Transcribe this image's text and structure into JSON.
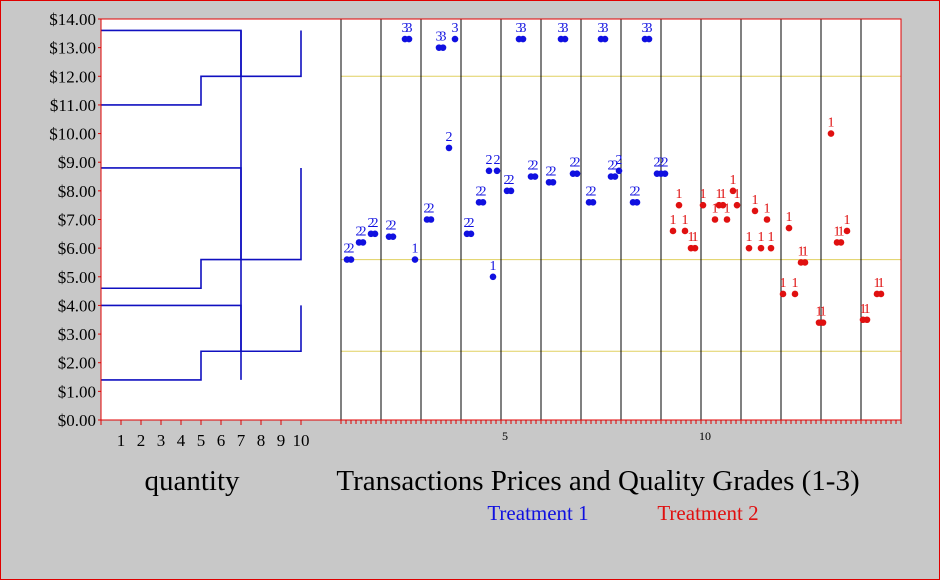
{
  "chart_data": {
    "type": "scatter",
    "title": "Transactions Prices and Quality Grades (1-3)",
    "yaxis": {
      "range": [
        0,
        14
      ],
      "ticks": [
        "$0.00",
        "$1.00",
        "$2.00",
        "$3.00",
        "$4.00",
        "$5.00",
        "$6.00",
        "$7.00",
        "$8.00",
        "$9.00",
        "$10.00",
        "$11.00",
        "$12.00",
        "$13.00",
        "$14.00"
      ]
    },
    "reference_prices": [
      12.0,
      5.6,
      2.4
    ],
    "supply_demand_panel": {
      "xlabel": "quantity",
      "x_range": [
        0,
        10
      ],
      "x_ticks": [
        "1",
        "2",
        "3",
        "4",
        "5",
        "6",
        "7",
        "8",
        "9",
        "10"
      ],
      "demand_steps": [
        {
          "grade": 3,
          "points": [
            [
              0,
              13.6
            ],
            [
              7,
              13.6
            ],
            [
              7,
              12.0
            ],
            [
              10,
              12.0
            ],
            [
              10,
              13.6
            ]
          ]
        },
        {
          "grade": 2,
          "points": [
            [
              0,
              8.8
            ],
            [
              7,
              8.8
            ],
            [
              7,
              5.6
            ],
            [
              10,
              5.6
            ],
            [
              10,
              8.8
            ]
          ]
        },
        {
          "grade": 1,
          "points": [
            [
              0,
              4.0
            ],
            [
              7,
              4.0
            ],
            [
              7,
              2.4
            ],
            [
              10,
              2.4
            ],
            [
              10,
              4.0
            ]
          ]
        }
      ],
      "supply_steps": [
        {
          "grade": 3,
          "points": [
            [
              0,
              11.0
            ],
            [
              5,
              11.0
            ],
            [
              5,
              12.0
            ],
            [
              7,
              12.0
            ]
          ]
        },
        {
          "grade": 2,
          "points": [
            [
              0,
              4.6
            ],
            [
              5,
              4.6
            ],
            [
              5,
              5.6
            ],
            [
              7,
              5.6
            ]
          ]
        },
        {
          "grade": 1,
          "points": [
            [
              0,
              1.4
            ],
            [
              5,
              1.4
            ],
            [
              5,
              2.4
            ],
            [
              7,
              2.4
            ]
          ]
        }
      ],
      "vertical_line_x": 7,
      "vertical_line_range": [
        1.4,
        13.6
      ]
    },
    "transactions_panel": {
      "periods": 14,
      "period_tick_labels": [
        {
          "period": 5,
          "label": "5"
        },
        {
          "period": 10,
          "label": "10"
        }
      ],
      "series": [
        {
          "name": "Treatment 1",
          "color": "#1010e0",
          "periods": [
            1,
            2,
            3,
            4,
            5,
            6,
            7,
            8,
            9
          ],
          "points": [
            {
              "x": 0.15,
              "y": 5.6,
              "label": "2"
            },
            {
              "x": 0.25,
              "y": 5.6,
              "label": "2"
            },
            {
              "x": 0.45,
              "y": 6.2,
              "label": "2"
            },
            {
              "x": 0.55,
              "y": 6.2,
              "label": "2"
            },
            {
              "x": 0.75,
              "y": 6.5,
              "label": "2"
            },
            {
              "x": 0.85,
              "y": 6.5,
              "label": "2"
            },
            {
              "x": 1.2,
              "y": 6.4,
              "label": "2"
            },
            {
              "x": 1.3,
              "y": 6.4,
              "label": "2"
            },
            {
              "x": 1.6,
              "y": 13.3,
              "label": "3"
            },
            {
              "x": 1.7,
              "y": 13.3,
              "label": "3"
            },
            {
              "x": 1.85,
              "y": 5.6,
              "label": "1"
            },
            {
              "x": 2.15,
              "y": 7.0,
              "label": "2"
            },
            {
              "x": 2.25,
              "y": 7.0,
              "label": "2"
            },
            {
              "x": 2.45,
              "y": 13.0,
              "label": "3"
            },
            {
              "x": 2.55,
              "y": 13.0,
              "label": "3"
            },
            {
              "x": 2.7,
              "y": 9.5,
              "label": "2"
            },
            {
              "x": 2.85,
              "y": 13.3,
              "label": "3"
            },
            {
              "x": 3.15,
              "y": 6.5,
              "label": "2"
            },
            {
              "x": 3.25,
              "y": 6.5,
              "label": "2"
            },
            {
              "x": 3.45,
              "y": 7.6,
              "label": "2"
            },
            {
              "x": 3.55,
              "y": 7.6,
              "label": "2"
            },
            {
              "x": 3.7,
              "y": 8.7,
              "label": "2"
            },
            {
              "x": 3.8,
              "y": 5.0,
              "label": "1"
            },
            {
              "x": 3.9,
              "y": 8.7,
              "label": "2"
            },
            {
              "x": 4.15,
              "y": 8.0,
              "label": "2"
            },
            {
              "x": 4.25,
              "y": 8.0,
              "label": "2"
            },
            {
              "x": 4.45,
              "y": 13.3,
              "label": "3"
            },
            {
              "x": 4.55,
              "y": 13.3,
              "label": "3"
            },
            {
              "x": 4.75,
              "y": 8.5,
              "label": "2"
            },
            {
              "x": 4.85,
              "y": 8.5,
              "label": "2"
            },
            {
              "x": 5.2,
              "y": 8.3,
              "label": "2"
            },
            {
              "x": 5.3,
              "y": 8.3,
              "label": "2"
            },
            {
              "x": 5.5,
              "y": 13.3,
              "label": "3"
            },
            {
              "x": 5.6,
              "y": 13.3,
              "label": "3"
            },
            {
              "x": 5.8,
              "y": 8.6,
              "label": "2"
            },
            {
              "x": 5.9,
              "y": 8.6,
              "label": "2"
            },
            {
              "x": 6.2,
              "y": 7.6,
              "label": "2"
            },
            {
              "x": 6.3,
              "y": 7.6,
              "label": "2"
            },
            {
              "x": 6.5,
              "y": 13.3,
              "label": "3"
            },
            {
              "x": 6.6,
              "y": 13.3,
              "label": "3"
            },
            {
              "x": 6.75,
              "y": 8.5,
              "label": "2"
            },
            {
              "x": 6.85,
              "y": 8.5,
              "label": "2"
            },
            {
              "x": 6.95,
              "y": 8.7,
              "label": "2"
            },
            {
              "x": 7.3,
              "y": 7.6,
              "label": "2"
            },
            {
              "x": 7.4,
              "y": 7.6,
              "label": "2"
            },
            {
              "x": 7.6,
              "y": 13.3,
              "label": "3"
            },
            {
              "x": 7.7,
              "y": 13.3,
              "label": "3"
            },
            {
              "x": 7.9,
              "y": 8.6,
              "label": "2"
            },
            {
              "x": 8.0,
              "y": 8.6,
              "label": "2"
            },
            {
              "x": 8.1,
              "y": 8.6,
              "label": "2"
            }
          ]
        },
        {
          "name": "Treatment 2",
          "color": "#e01010",
          "periods": [
            10,
            11,
            12,
            13,
            14
          ],
          "points": [
            {
              "x": 8.3,
              "y": 6.6,
              "label": "1"
            },
            {
              "x": 8.45,
              "y": 7.5,
              "label": "1"
            },
            {
              "x": 8.6,
              "y": 6.6,
              "label": "1"
            },
            {
              "x": 8.75,
              "y": 6.0,
              "label": "1"
            },
            {
              "x": 8.85,
              "y": 6.0,
              "label": "1"
            },
            {
              "x": 9.05,
              "y": 7.5,
              "label": "1"
            },
            {
              "x": 9.35,
              "y": 7.0,
              "label": "1"
            },
            {
              "x": 9.45,
              "y": 7.5,
              "label": "1"
            },
            {
              "x": 9.55,
              "y": 7.5,
              "label": "1"
            },
            {
              "x": 9.65,
              "y": 7.0,
              "label": "1"
            },
            {
              "x": 9.8,
              "y": 8.0,
              "label": "1"
            },
            {
              "x": 9.9,
              "y": 7.5,
              "label": "1"
            },
            {
              "x": 10.2,
              "y": 6.0,
              "label": "1"
            },
            {
              "x": 10.35,
              "y": 7.3,
              "label": "1"
            },
            {
              "x": 10.5,
              "y": 6.0,
              "label": "1"
            },
            {
              "x": 10.65,
              "y": 7.0,
              "label": "1"
            },
            {
              "x": 10.75,
              "y": 6.0,
              "label": "1"
            },
            {
              "x": 11.05,
              "y": 4.4,
              "label": "1"
            },
            {
              "x": 11.2,
              "y": 6.7,
              "label": "1"
            },
            {
              "x": 11.35,
              "y": 4.4,
              "label": "1"
            },
            {
              "x": 11.5,
              "y": 5.5,
              "label": "1"
            },
            {
              "x": 11.6,
              "y": 5.5,
              "label": "1"
            },
            {
              "x": 11.95,
              "y": 3.4,
              "label": "1"
            },
            {
              "x": 12.05,
              "y": 3.4,
              "label": "1"
            },
            {
              "x": 12.25,
              "y": 10.0,
              "label": "1"
            },
            {
              "x": 12.4,
              "y": 6.2,
              "label": "1"
            },
            {
              "x": 12.5,
              "y": 6.2,
              "label": "1"
            },
            {
              "x": 12.65,
              "y": 6.6,
              "label": "1"
            },
            {
              "x": 13.05,
              "y": 3.5,
              "label": "1"
            },
            {
              "x": 13.15,
              "y": 3.5,
              "label": "1"
            },
            {
              "x": 13.4,
              "y": 4.4,
              "label": "1"
            },
            {
              "x": 13.5,
              "y": 4.4,
              "label": "1"
            }
          ]
        }
      ]
    },
    "colors": {
      "axis_frame": "#e00000",
      "grid_line": "#e0d060",
      "step_line": "#1010c0",
      "period_divider": "#000000",
      "background": "#ffffff",
      "page": "#c8c8c8"
    }
  }
}
